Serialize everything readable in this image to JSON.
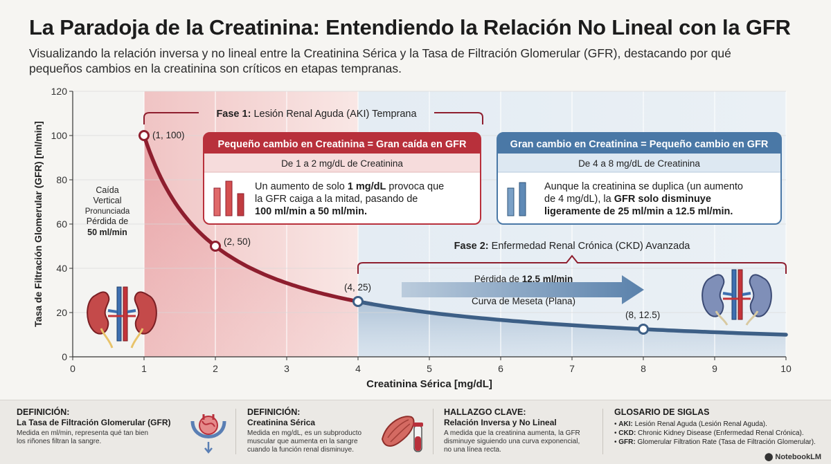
{
  "header": {
    "title": "La Paradoja de la Creatinina: Entendiendo la Relación No Lineal con la GFR",
    "subtitle_line1": "Visualizando la relación inversa y no lineal entre la Creatinina Sérica y la Tasa de Filtración Glomerular (GFR), destacando por qué",
    "subtitle_line2": "pequeños cambios en la creatinina son críticos en etapas tempranas."
  },
  "chart_data": {
    "type": "line",
    "xlabel": "Creatinina Sérica [mg/dL]",
    "ylabel": "Tasa de Filtración Glomerular (GFR) [ml/min]",
    "xlim": [
      0,
      10
    ],
    "ylim": [
      0,
      120
    ],
    "x_ticks": [
      0,
      1,
      2,
      3,
      4,
      5,
      6,
      7,
      8,
      9,
      10
    ],
    "y_ticks": [
      0,
      20,
      40,
      60,
      80,
      100,
      120
    ],
    "grid": true,
    "series": [
      {
        "values_x": [
          1,
          1.25,
          1.5,
          1.75,
          2,
          2.5,
          3,
          3.5,
          4,
          4.5,
          5,
          5.5,
          6,
          6.5,
          7,
          7.5,
          8,
          8.5,
          9,
          9.5,
          10
        ],
        "values_y": [
          100,
          80,
          66.7,
          57.1,
          50,
          40,
          33.3,
          28.6,
          25,
          22.2,
          20,
          18.2,
          16.7,
          15.4,
          14.3,
          13.3,
          12.5,
          11.8,
          11.1,
          10.5,
          10
        ],
        "color": "#8e1e2e"
      }
    ],
    "points": [
      {
        "x": 1,
        "y": 100,
        "label": "(1, 100)"
      },
      {
        "x": 2,
        "y": 50,
        "label": "(2, 50)"
      },
      {
        "x": 4,
        "y": 25,
        "label": "(4, 25)"
      },
      {
        "x": 8,
        "y": 12.5,
        "label": "(8, 12.5)"
      }
    ],
    "phases": [
      {
        "bold": "Fase 1:",
        "text": " Lesión Renal Aguda (AKI) Temprana",
        "x_from": 1,
        "x_to": 4,
        "color": "#8e1e2e"
      },
      {
        "bold": "Fase 2:",
        "text": " Enfermedad Renal Crónica (CKD) Avanzada",
        "x_from": 4,
        "x_to": 10,
        "color": "#4a6f94"
      }
    ],
    "annotations": {
      "vertical_drop": {
        "line1": "Caída",
        "line2": "Vertical",
        "line3": "Pronunciada",
        "line4": "Pérdida de",
        "line5": "50 ml/min"
      },
      "plateau": {
        "loss_prefix": "Pérdida de ",
        "loss_bold": "12.5 ml/min",
        "curve": "Curva de Meseta (Plana)"
      }
    },
    "boxes": [
      {
        "header": "Pequeño cambio en Creatinina = Gran caída en GFR",
        "sub": "De 1 a 2 mg/dL de Creatinina",
        "line1_a": "Un aumento de solo ",
        "line1_b": "1 mg/dL",
        "line1_c": " provoca que",
        "line2": "la GFR caiga a la mitad, pasando de",
        "line3": "100 ml/min a 50 ml/min.",
        "color": "#b8303b"
      },
      {
        "header": "Gran cambio en Creatinina = Pequeño cambio en GFR",
        "sub": "De 4 a 8 mg/dL de Creatinina",
        "line1": "Aunque la creatinina se duplica (un aumento",
        "line2_a": "de 4 mg/dL), la ",
        "line2_b": "GFR solo disminuye",
        "line3": "ligeramente de 25 ml/min a 12.5 ml/min.",
        "color": "#4a78a6"
      }
    ]
  },
  "footer": {
    "col1": {
      "heading": "DEFINICIÓN:",
      "subheading": "La Tasa de Filtración Glomerular (GFR)",
      "line1": "Medida en ml/min, representa qué tan bien",
      "line2": "los riñones filtran la sangre."
    },
    "col2": {
      "heading": "DEFINICIÓN:",
      "subheading": "Creatinina Sérica",
      "line1": "Medida en mg/dL, es un subproducto",
      "line2": "muscular que aumenta en la sangre",
      "line3": "cuando la función renal disminuye."
    },
    "col3": {
      "heading": "HALLAZGO CLAVE:",
      "subheading": "Relación Inversa y No Lineal",
      "line1": "A medida que la creatinina aumenta, la GFR",
      "line2": "disminuye siguiendo una curva exponencial,",
      "line3": "no una línea recta."
    },
    "col4": {
      "heading": "GLOSARIO DE SIGLAS",
      "items": [
        {
          "abbr": "AKI:",
          "text": " Lesión Renal Aguda (Lesión Renal Aguda)."
        },
        {
          "abbr": "CKD:",
          "text": " Chronic Kidney Disease (Enfermedad Renal Crónica)."
        },
        {
          "abbr": "GFR:",
          "text": " Glomerular Filtration Rate (Tasa de Filtración Glomerular)."
        }
      ]
    },
    "brand": "NotebookLM"
  }
}
